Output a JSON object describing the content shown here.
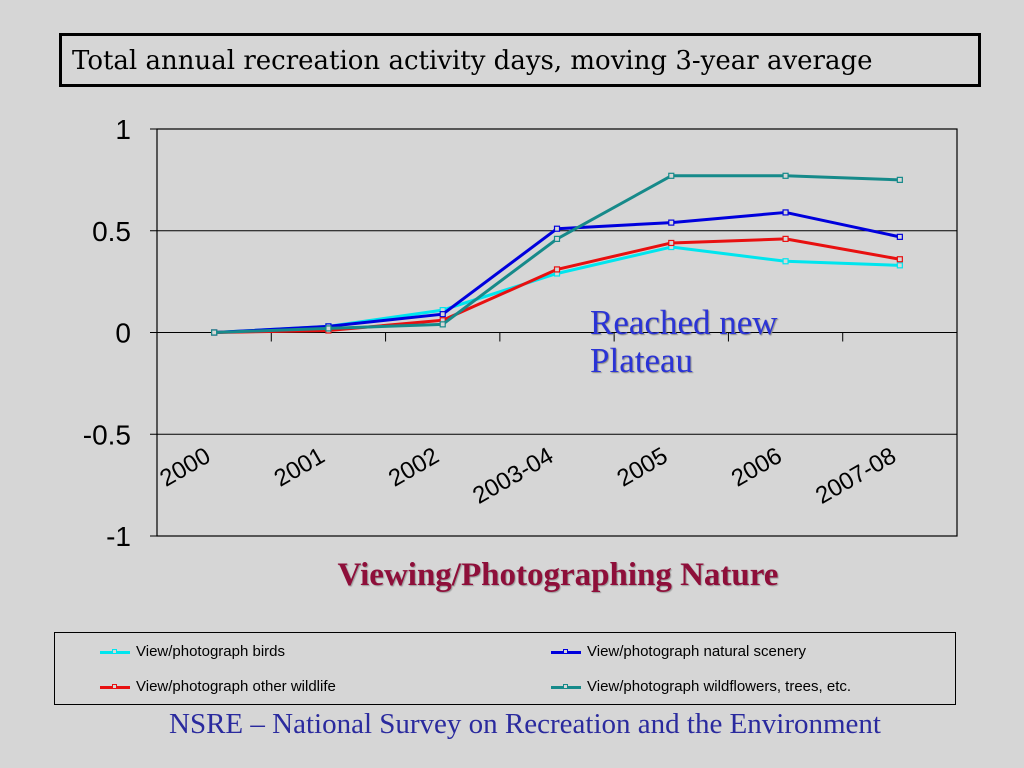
{
  "slide": {
    "title": "Total annual recreation activity days, moving 3-year average",
    "annotation_line1": "Reached new",
    "annotation_line2": "Plateau",
    "subtitle": "Viewing/Photographing Nature",
    "footer": "NSRE – National Survey on Recreation and the Environment"
  },
  "chart_data": {
    "type": "line",
    "categories": [
      "2000",
      "2001",
      "2002",
      "2003-04",
      "2005",
      "2006",
      "2007-08"
    ],
    "ylim": [
      -1,
      1
    ],
    "yticks": [
      1,
      0.5,
      0,
      -0.5,
      -1
    ],
    "ytick_labels": [
      "1",
      "0.5",
      "0",
      "-0.5",
      "-1"
    ],
    "grid": "horizontal",
    "legend_position": "bottom",
    "series": [
      {
        "name": "View/photograph birds",
        "color": "#00e5ee",
        "values": [
          0,
          0.03,
          0.11,
          0.29,
          0.42,
          0.35,
          0.33
        ]
      },
      {
        "name": "View/photograph natural scenery",
        "color": "#0000dd",
        "values": [
          0,
          0.03,
          0.09,
          0.51,
          0.54,
          0.59,
          0.47
        ]
      },
      {
        "name": "View/photograph other wildlife",
        "color": "#e81010",
        "values": [
          0,
          0.01,
          0.06,
          0.31,
          0.44,
          0.46,
          0.36
        ]
      },
      {
        "name": "View/photograph wildflowers, trees, etc.",
        "color": "#168a8a",
        "values": [
          0,
          0.02,
          0.04,
          0.46,
          0.77,
          0.77,
          0.75
        ]
      }
    ]
  }
}
